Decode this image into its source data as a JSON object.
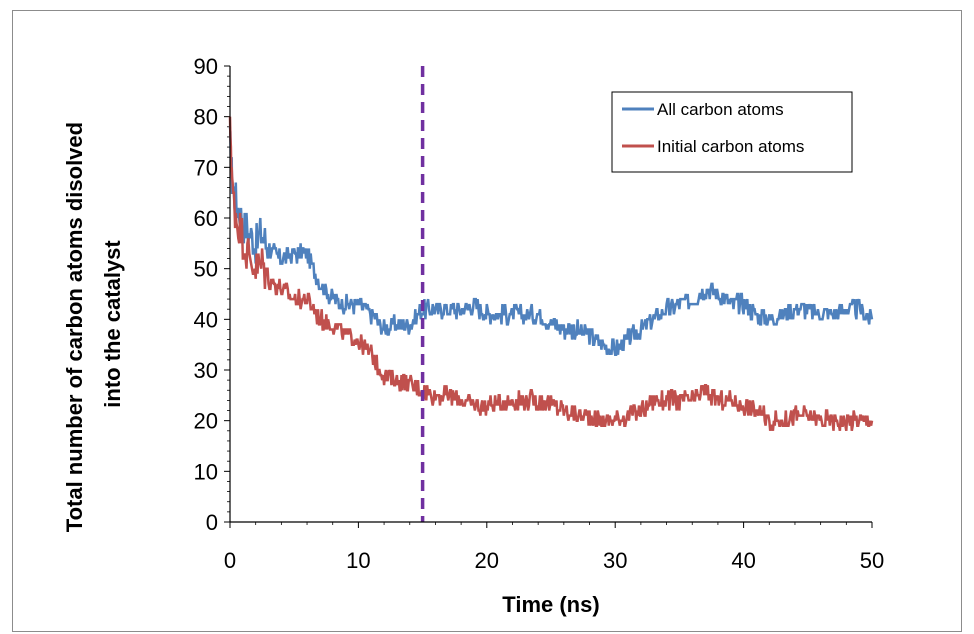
{
  "chart_data": {
    "type": "line",
    "title": "",
    "xlabel": "Time (ns)",
    "ylabel": "Total number of carbon atoms disolved into the catalyst",
    "ylabel_lines": [
      "Total number of carbon atoms disolved",
      "into the catalyst"
    ],
    "xlim": [
      0,
      50
    ],
    "ylim": [
      0,
      90
    ],
    "xticks": [
      0,
      10,
      20,
      30,
      40,
      50
    ],
    "yticks": [
      0,
      10,
      20,
      30,
      40,
      50,
      60,
      70,
      80,
      90
    ],
    "xtick_labels": [
      "0",
      "10",
      "20",
      "30",
      "40",
      "50"
    ],
    "ytick_labels": [
      "0",
      "10",
      "20",
      "30",
      "40",
      "50",
      "60",
      "70",
      "80",
      "90"
    ],
    "grid": false,
    "legend_position": "top-right",
    "vline": {
      "x": 15,
      "color": "#7030A0",
      "style": "dashed"
    },
    "series": [
      {
        "name": "All carbon atoms",
        "color": "#4F81BD",
        "x": [
          0,
          0.2,
          0.5,
          1,
          1.5,
          2,
          2.5,
          3,
          4,
          5,
          6,
          7,
          8,
          9,
          10,
          11,
          12,
          13,
          14,
          15,
          16,
          17,
          18,
          19,
          20,
          22,
          24,
          26,
          27,
          28,
          29,
          30,
          31,
          32,
          33,
          34,
          35,
          36,
          37,
          38,
          39,
          40,
          41,
          42,
          43,
          44,
          45,
          46,
          47,
          48,
          49,
          50
        ],
        "y": [
          75,
          66,
          63,
          59,
          57,
          55,
          57,
          54,
          52,
          53,
          53,
          47,
          44,
          43,
          43,
          41,
          38,
          39,
          39,
          42,
          42,
          42,
          42,
          43,
          41,
          41,
          41,
          38,
          38,
          37,
          35,
          34,
          36,
          38,
          40,
          42,
          43,
          44,
          46,
          45,
          43,
          43,
          41,
          40,
          41,
          42,
          42,
          41,
          41,
          42,
          42,
          40
        ]
      },
      {
        "name": "Initial carbon atoms",
        "color": "#C0504D",
        "x": [
          0,
          0.2,
          0.5,
          1,
          1.5,
          2,
          2.5,
          3,
          4,
          5,
          6,
          7,
          8,
          9,
          10,
          11,
          12,
          13,
          14,
          15,
          16,
          17,
          18,
          19,
          20,
          22,
          24,
          26,
          27,
          28,
          29,
          30,
          31,
          32,
          33,
          34,
          35,
          36,
          37,
          38,
          39,
          40,
          41,
          42,
          43,
          44,
          45,
          46,
          47,
          48,
          49,
          50
        ],
        "y": [
          80,
          65,
          60,
          56,
          52,
          50,
          51,
          48,
          46,
          44,
          44,
          40,
          39,
          37,
          36,
          33,
          29,
          28,
          27,
          26,
          25,
          25,
          24,
          23,
          23,
          24,
          24,
          22,
          21,
          21,
          20,
          20,
          21,
          22,
          24,
          24,
          24,
          24,
          26,
          24,
          24,
          23,
          22,
          20,
          20,
          21,
          21,
          20,
          20,
          20,
          20,
          20
        ]
      }
    ]
  }
}
